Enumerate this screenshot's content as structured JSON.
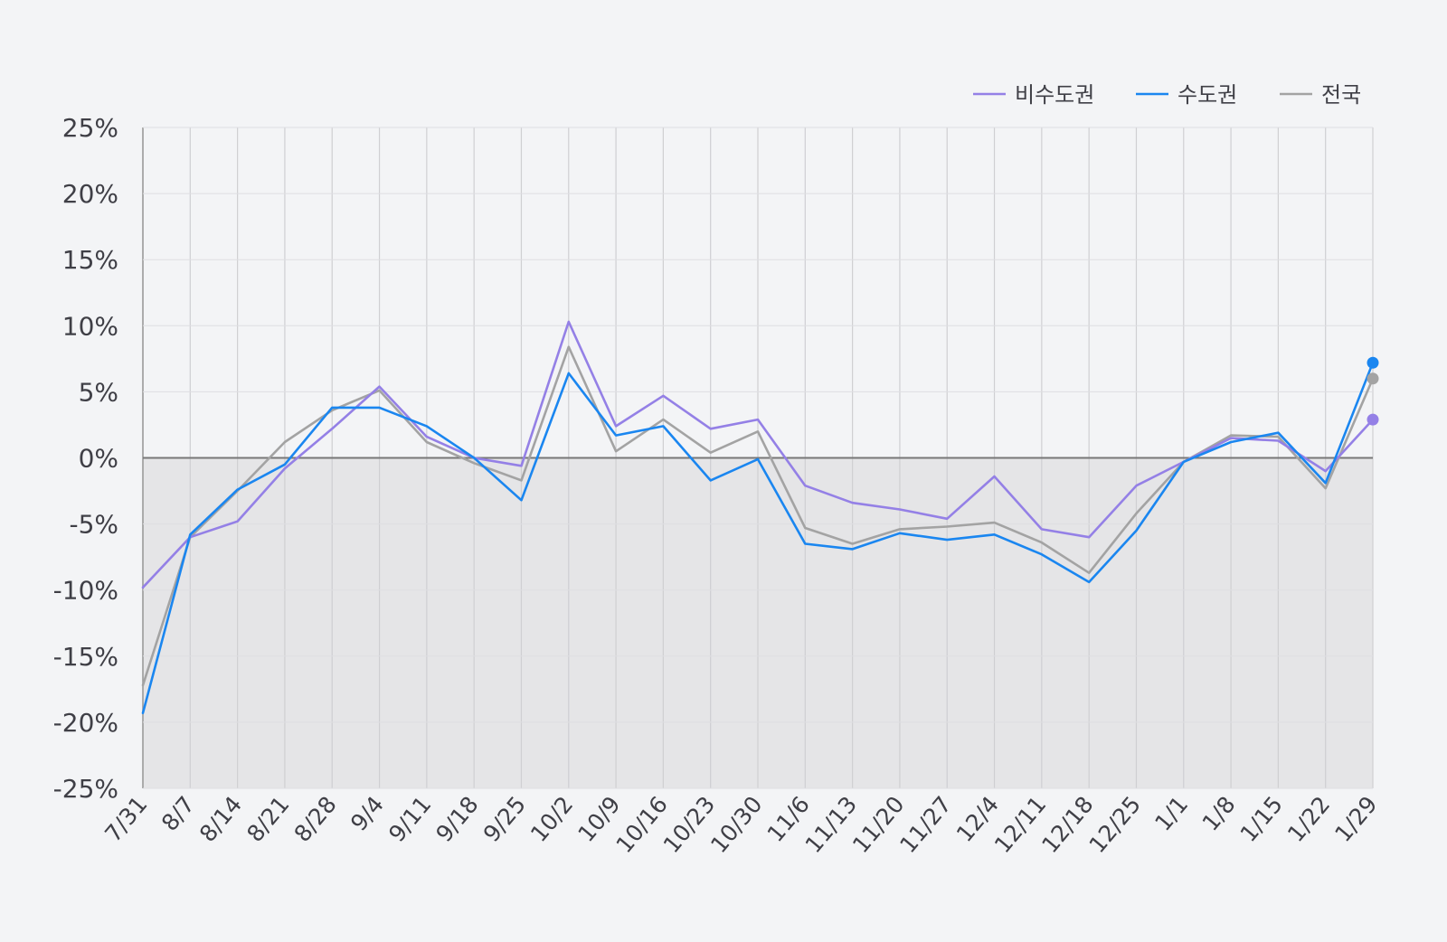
{
  "chart_data": {
    "type": "line",
    "title": "",
    "xlabel": "",
    "ylabel": "",
    "ylim": [
      -25,
      25
    ],
    "ytick_step": 5,
    "y_unit": "%",
    "grid": {
      "vertical": true,
      "horizontal": true
    },
    "legend_position": "top-right",
    "negative_region_shaded": true,
    "categories": [
      "7/31",
      "8/7",
      "8/14",
      "8/21",
      "8/28",
      "9/4",
      "9/11",
      "9/18",
      "9/25",
      "10/2",
      "10/9",
      "10/16",
      "10/23",
      "10/30",
      "11/6",
      "11/13",
      "11/20",
      "11/27",
      "12/4",
      "12/11",
      "12/18",
      "12/25",
      "1/1",
      "1/8",
      "1/15",
      "1/22",
      "1/29"
    ],
    "series": [
      {
        "name": "비수도권",
        "color": "#9480e6",
        "values": [
          -9.8,
          -6.0,
          -4.8,
          -0.8,
          2.2,
          5.4,
          1.6,
          0.0,
          -0.6,
          10.3,
          2.4,
          4.7,
          2.2,
          2.9,
          -2.1,
          -3.4,
          -3.9,
          -4.6,
          -1.4,
          -5.4,
          -6.0,
          -2.1,
          -0.3,
          1.5,
          1.3,
          -1.0,
          2.9
        ]
      },
      {
        "name": "수도권",
        "color": "#1a86f0",
        "values": [
          -19.3,
          -5.8,
          -2.4,
          -0.5,
          3.8,
          3.8,
          2.4,
          0.0,
          -3.2,
          6.4,
          1.7,
          2.4,
          -1.7,
          -0.1,
          -6.5,
          -6.9,
          -5.7,
          -6.2,
          -5.8,
          -7.3,
          -9.4,
          -5.5,
          -0.3,
          1.2,
          1.9,
          -1.9,
          7.2
        ]
      },
      {
        "name": "전국",
        "color": "#a3a3a3",
        "values": [
          -17.2,
          -6.0,
          -2.5,
          1.2,
          3.6,
          5.1,
          1.2,
          -0.4,
          -1.7,
          8.4,
          0.5,
          2.9,
          0.4,
          2.0,
          -5.3,
          -6.5,
          -5.4,
          -5.2,
          -4.9,
          -6.4,
          -8.7,
          -4.2,
          -0.3,
          1.7,
          1.6,
          -2.3,
          6.0
        ]
      }
    ]
  }
}
